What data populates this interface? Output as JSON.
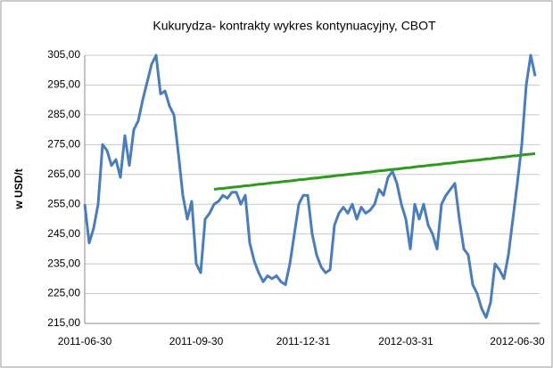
{
  "chart_data": {
    "type": "line",
    "title": "Kukurydza- kontrakty wykres kontynuacyjny, CBOT",
    "y_label": "w USD/t",
    "categories": [
      "2011-06-30",
      null,
      null,
      null,
      null,
      null,
      null,
      null,
      null,
      null,
      null,
      null,
      null,
      null,
      null,
      null,
      null,
      null,
      null,
      null,
      null,
      null,
      null,
      null,
      null,
      "2011-09-30",
      null,
      null,
      null,
      null,
      null,
      null,
      null,
      null,
      null,
      null,
      null,
      null,
      null,
      null,
      null,
      null,
      null,
      null,
      null,
      null,
      null,
      null,
      null,
      "2011-12-31",
      null,
      null,
      null,
      null,
      null,
      null,
      null,
      null,
      null,
      null,
      null,
      null,
      null,
      null,
      null,
      null,
      null,
      null,
      null,
      null,
      null,
      null,
      "2012-03-31",
      null,
      null,
      null,
      null,
      null,
      null,
      null,
      null,
      null,
      null,
      null,
      null,
      null,
      null,
      null,
      null,
      null,
      null,
      null,
      null,
      null,
      null,
      null,
      null,
      "2012-06-30",
      null,
      null,
      null,
      null
    ],
    "series": [
      {
        "color": "#4a7ebb",
        "values": [
          255,
          242,
          247,
          255,
          275,
          273,
          268,
          270,
          264,
          278,
          268,
          280,
          283,
          290,
          296,
          302,
          305,
          292,
          293,
          288,
          285,
          272,
          258,
          250,
          256,
          235,
          232,
          250,
          252,
          255,
          256,
          258,
          257,
          259,
          259,
          255,
          258,
          242,
          236,
          232,
          229,
          231,
          230,
          231,
          229,
          228,
          235,
          245,
          255,
          258,
          258,
          245,
          238,
          234,
          232,
          233,
          248,
          252,
          254,
          252,
          255,
          250,
          254,
          252,
          253,
          255,
          260,
          258,
          264,
          266,
          262,
          255,
          250,
          240,
          255,
          250,
          255,
          248,
          245,
          240,
          255,
          258,
          260,
          262,
          250,
          240,
          238,
          228,
          225,
          220,
          217,
          222,
          235,
          233,
          230,
          238,
          250,
          262,
          275,
          295,
          305,
          298
        ]
      },
      {
        "color": "#2e9a1e",
        "values": [
          null,
          null,
          null,
          null,
          null,
          null,
          null,
          null,
          null,
          null,
          null,
          null,
          null,
          null,
          null,
          null,
          null,
          null,
          null,
          null,
          null,
          null,
          null,
          null,
          null,
          null,
          null,
          null,
          null,
          260,
          260.2,
          260.3,
          260.5,
          260.7,
          260.8,
          261,
          261.2,
          261.3,
          261.5,
          261.7,
          261.8,
          262,
          262.2,
          262.3,
          262.5,
          262.7,
          262.8,
          263,
          263.2,
          263.3,
          263.5,
          263.7,
          263.8,
          264,
          264.2,
          264.3,
          264.5,
          264.7,
          264.8,
          265,
          265.2,
          265.3,
          265.5,
          265.7,
          265.8,
          266,
          266.2,
          266.3,
          266.5,
          266.7,
          266.8,
          267,
          267.2,
          267.3,
          267.5,
          267.7,
          267.8,
          268,
          268.2,
          268.3,
          268.5,
          268.7,
          268.8,
          269,
          269.2,
          269.3,
          269.5,
          269.7,
          269.8,
          270,
          270.2,
          270.3,
          270.5,
          270.7,
          270.8,
          271,
          271.2,
          271.3,
          271.5,
          271.7,
          271.8,
          272
        ]
      }
    ],
    "ylim": [
      215,
      305
    ],
    "yticks": [
      {
        "value": 215,
        "label": "215,00"
      },
      {
        "value": 225,
        "label": "225,00"
      },
      {
        "value": 235,
        "label": "235,00"
      },
      {
        "value": 245,
        "label": "245,00"
      },
      {
        "value": 255,
        "label": "255,00"
      },
      {
        "value": 265,
        "label": "265,00"
      },
      {
        "value": 275,
        "label": "275,00"
      },
      {
        "value": 285,
        "label": "285,00"
      },
      {
        "value": 295,
        "label": "295,00"
      },
      {
        "value": 305,
        "label": "305,00"
      }
    ],
    "grid": true
  }
}
